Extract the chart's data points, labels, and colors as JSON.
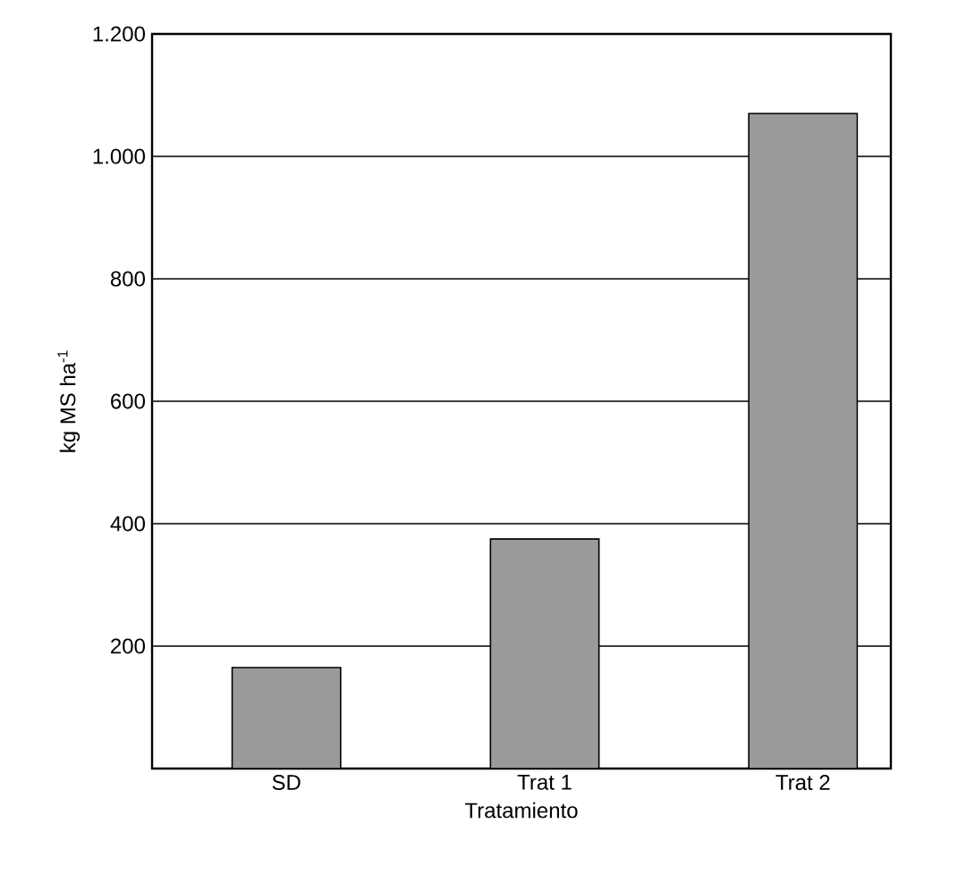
{
  "chart_data": {
    "type": "bar",
    "xlabel": "Tratamiento",
    "ylabel": "kg MS ha$^{-1}$",
    "categories": [
      "SD",
      "Trat 1",
      "Trat 2"
    ],
    "values": [
      165,
      375,
      1070
    ],
    "color": "#9a9a9a",
    "ylim": [
      0,
      1200
    ],
    "yticks": [
      200,
      400,
      600,
      800,
      {
        "value": 1000,
        "label": "1.000"
      },
      {
        "value": 1200,
        "label": "1.200"
      }
    ],
    "grid": "y"
  }
}
